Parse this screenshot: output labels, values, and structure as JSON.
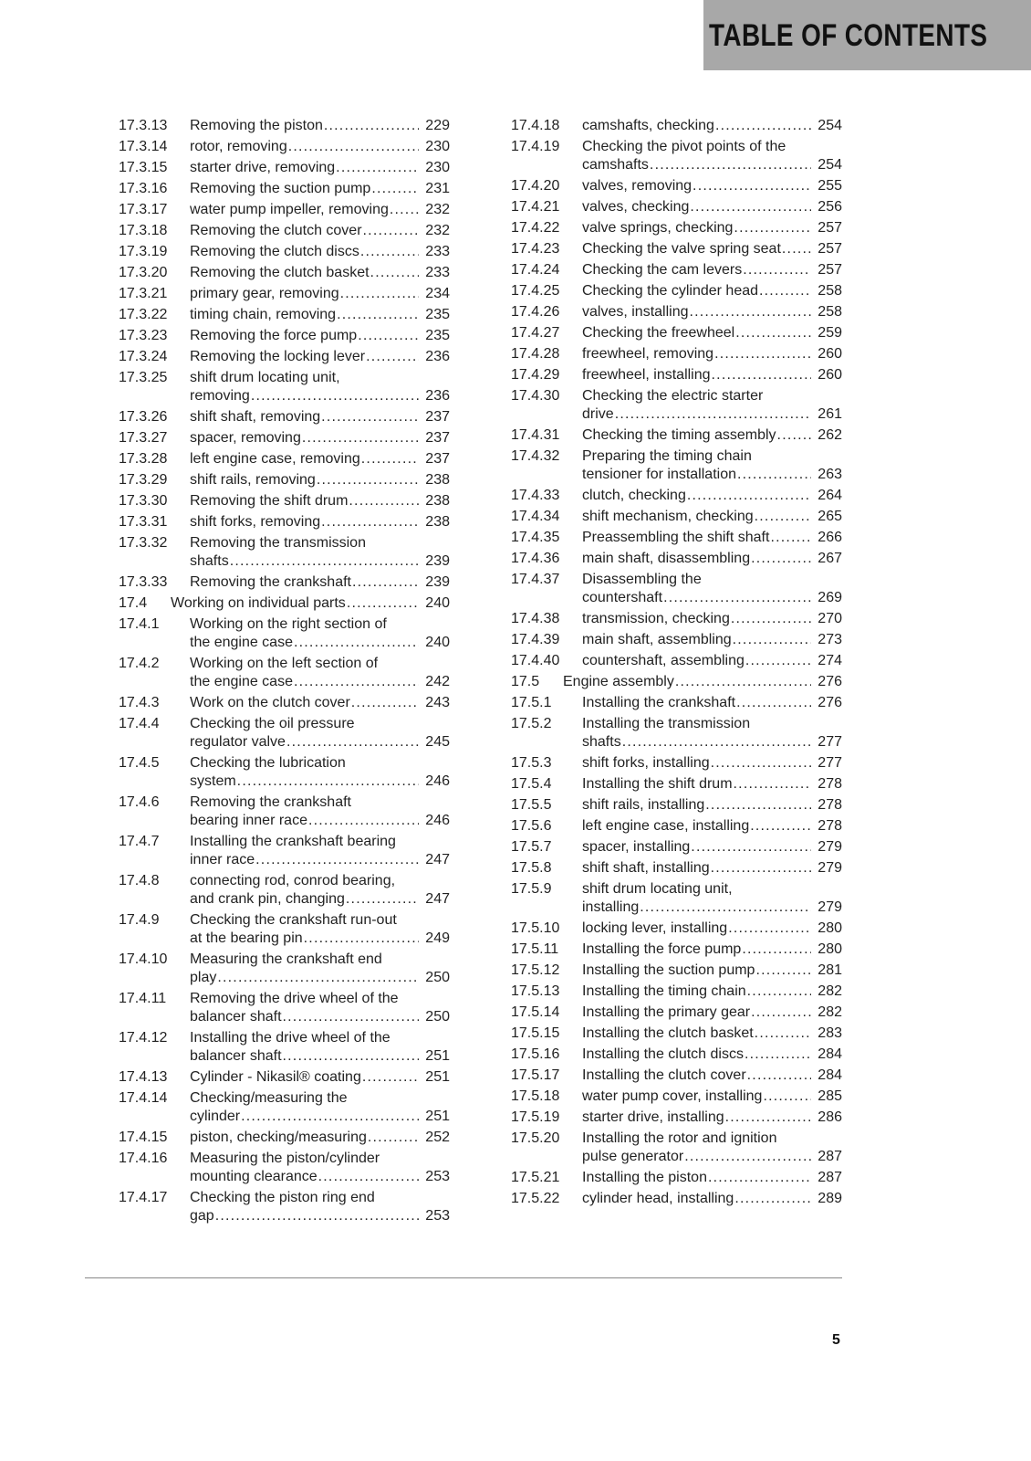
{
  "header": {
    "title": "TABLE OF CONTENTS"
  },
  "page_number": "5",
  "left": [
    {
      "num": "17.3.13",
      "lines": [
        "Removing the piston"
      ],
      "page": "229"
    },
    {
      "num": "17.3.14",
      "lines": [
        "rotor, removing"
      ],
      "page": "230"
    },
    {
      "num": "17.3.15",
      "lines": [
        "starter drive, removing"
      ],
      "page": "230"
    },
    {
      "num": "17.3.16",
      "lines": [
        "Removing the suction pump"
      ],
      "page": "231"
    },
    {
      "num": "17.3.17",
      "lines": [
        "water pump impeller, removing"
      ],
      "page": "232"
    },
    {
      "num": "17.3.18",
      "lines": [
        "Removing the clutch cover"
      ],
      "page": "232"
    },
    {
      "num": "17.3.19",
      "lines": [
        "Removing the clutch discs"
      ],
      "page": "233"
    },
    {
      "num": "17.3.20",
      "lines": [
        "Removing the clutch basket"
      ],
      "page": "233"
    },
    {
      "num": "17.3.21",
      "lines": [
        "primary gear, removing"
      ],
      "page": "234"
    },
    {
      "num": "17.3.22",
      "lines": [
        "timing chain, removing"
      ],
      "page": "235"
    },
    {
      "num": "17.3.23",
      "lines": [
        "Removing the force pump"
      ],
      "page": "235"
    },
    {
      "num": "17.3.24",
      "lines": [
        "Removing the locking lever"
      ],
      "page": "236"
    },
    {
      "num": "17.3.25",
      "lines": [
        "shift drum locating unit,",
        "removing"
      ],
      "page": "236"
    },
    {
      "num": "17.3.26",
      "lines": [
        "shift shaft, removing"
      ],
      "page": "237"
    },
    {
      "num": "17.3.27",
      "lines": [
        "spacer, removing"
      ],
      "page": "237"
    },
    {
      "num": "17.3.28",
      "lines": [
        "left engine case, removing"
      ],
      "page": "237"
    },
    {
      "num": "17.3.29",
      "lines": [
        "shift rails, removing"
      ],
      "page": "238"
    },
    {
      "num": "17.3.30",
      "lines": [
        "Removing the shift drum"
      ],
      "page": "238"
    },
    {
      "num": "17.3.31",
      "lines": [
        "shift forks, removing"
      ],
      "page": "238"
    },
    {
      "num": "17.3.32",
      "lines": [
        "Removing the transmission",
        "shafts"
      ],
      "page": "239"
    },
    {
      "num": "17.3.33",
      "lines": [
        "Removing the crankshaft"
      ],
      "page": "239"
    },
    {
      "num": "17.4",
      "lines": [
        "Working on individual parts"
      ],
      "page": "240",
      "level": 2
    },
    {
      "num": "17.4.1",
      "lines": [
        "Working on the right section of",
        "the engine case"
      ],
      "page": "240"
    },
    {
      "num": "17.4.2",
      "lines": [
        "Working on the left section of",
        "the engine case"
      ],
      "page": "242"
    },
    {
      "num": "17.4.3",
      "lines": [
        "Work on the clutch cover"
      ],
      "page": "243"
    },
    {
      "num": "17.4.4",
      "lines": [
        "Checking the oil pressure",
        "regulator valve"
      ],
      "page": "245"
    },
    {
      "num": "17.4.5",
      "lines": [
        "Checking the lubrication",
        "system"
      ],
      "page": "246"
    },
    {
      "num": "17.4.6",
      "lines": [
        "Removing the crankshaft",
        "bearing inner race"
      ],
      "page": "246"
    },
    {
      "num": "17.4.7",
      "lines": [
        "Installing the crankshaft bearing",
        "inner race"
      ],
      "page": "247"
    },
    {
      "num": "17.4.8",
      "lines": [
        "connecting rod, conrod bearing,",
        "and crank pin, changing"
      ],
      "page": "247"
    },
    {
      "num": "17.4.9",
      "lines": [
        "Checking the crankshaft run-out",
        "at the bearing pin"
      ],
      "page": "249"
    },
    {
      "num": "17.4.10",
      "lines": [
        "Measuring the crankshaft end",
        "play"
      ],
      "page": "250"
    },
    {
      "num": "17.4.11",
      "lines": [
        "Removing the drive wheel of the",
        "balancer shaft"
      ],
      "page": "250"
    },
    {
      "num": "17.4.12",
      "lines": [
        "Installing the drive wheel of the",
        "balancer shaft"
      ],
      "page": "251"
    },
    {
      "num": "17.4.13",
      "lines": [
        "Cylinder - Nikasil® coating"
      ],
      "page": "251"
    },
    {
      "num": "17.4.14",
      "lines": [
        "Checking/measuring the",
        "cylinder"
      ],
      "page": "251"
    },
    {
      "num": "17.4.15",
      "lines": [
        "piston, checking/measuring"
      ],
      "page": "252"
    },
    {
      "num": "17.4.16",
      "lines": [
        "Measuring the piston/cylinder",
        "mounting clearance"
      ],
      "page": "253"
    },
    {
      "num": "17.4.17",
      "lines": [
        "Checking the piston ring end",
        "gap"
      ],
      "page": "253"
    }
  ],
  "right": [
    {
      "num": "17.4.18",
      "lines": [
        "camshafts, checking"
      ],
      "page": "254"
    },
    {
      "num": "17.4.19",
      "lines": [
        "Checking the pivot points of the",
        "camshafts"
      ],
      "page": "254"
    },
    {
      "num": "17.4.20",
      "lines": [
        "valves, removing"
      ],
      "page": "255"
    },
    {
      "num": "17.4.21",
      "lines": [
        "valves, checking"
      ],
      "page": "256"
    },
    {
      "num": "17.4.22",
      "lines": [
        "valve springs, checking"
      ],
      "page": "257"
    },
    {
      "num": "17.4.23",
      "lines": [
        "Checking the valve spring seat"
      ],
      "page": "257"
    },
    {
      "num": "17.4.24",
      "lines": [
        "Checking the cam levers"
      ],
      "page": "257"
    },
    {
      "num": "17.4.25",
      "lines": [
        "Checking the cylinder head"
      ],
      "page": "258"
    },
    {
      "num": "17.4.26",
      "lines": [
        "valves, installing"
      ],
      "page": "258"
    },
    {
      "num": "17.4.27",
      "lines": [
        "Checking the freewheel"
      ],
      "page": "259"
    },
    {
      "num": "17.4.28",
      "lines": [
        "freewheel, removing"
      ],
      "page": "260"
    },
    {
      "num": "17.4.29",
      "lines": [
        "freewheel, installing"
      ],
      "page": "260"
    },
    {
      "num": "17.4.30",
      "lines": [
        "Checking the electric starter",
        "drive"
      ],
      "page": "261"
    },
    {
      "num": "17.4.31",
      "lines": [
        "Checking the timing assembly"
      ],
      "page": "262"
    },
    {
      "num": "17.4.32",
      "lines": [
        "Preparing the timing chain",
        "tensioner for installation"
      ],
      "page": "263"
    },
    {
      "num": "17.4.33",
      "lines": [
        "clutch, checking"
      ],
      "page": "264"
    },
    {
      "num": "17.4.34",
      "lines": [
        "shift mechanism, checking"
      ],
      "page": "265"
    },
    {
      "num": "17.4.35",
      "lines": [
        "Preassembling the shift shaft"
      ],
      "page": "266"
    },
    {
      "num": "17.4.36",
      "lines": [
        "main shaft, disassembling"
      ],
      "page": "267"
    },
    {
      "num": "17.4.37",
      "lines": [
        "Disassembling the",
        "countershaft"
      ],
      "page": "269"
    },
    {
      "num": "17.4.38",
      "lines": [
        "transmission, checking"
      ],
      "page": "270"
    },
    {
      "num": "17.4.39",
      "lines": [
        "main shaft, assembling"
      ],
      "page": "273"
    },
    {
      "num": "17.4.40",
      "lines": [
        "countershaft, assembling"
      ],
      "page": "274"
    },
    {
      "num": "17.5",
      "lines": [
        "Engine assembly"
      ],
      "page": "276",
      "level": 2
    },
    {
      "num": "17.5.1",
      "lines": [
        "Installing the crankshaft"
      ],
      "page": "276"
    },
    {
      "num": "17.5.2",
      "lines": [
        "Installing the transmission",
        "shafts"
      ],
      "page": "277"
    },
    {
      "num": "17.5.3",
      "lines": [
        "shift forks, installing"
      ],
      "page": "277"
    },
    {
      "num": "17.5.4",
      "lines": [
        "Installing the shift drum"
      ],
      "page": "278"
    },
    {
      "num": "17.5.5",
      "lines": [
        "shift rails, installing"
      ],
      "page": "278"
    },
    {
      "num": "17.5.6",
      "lines": [
        "left engine case, installing"
      ],
      "page": "278"
    },
    {
      "num": "17.5.7",
      "lines": [
        "spacer, installing"
      ],
      "page": "279"
    },
    {
      "num": "17.5.8",
      "lines": [
        "shift shaft, installing"
      ],
      "page": "279"
    },
    {
      "num": "17.5.9",
      "lines": [
        "shift drum locating unit,",
        "installing"
      ],
      "page": "279"
    },
    {
      "num": "17.5.10",
      "lines": [
        "locking lever, installing"
      ],
      "page": "280"
    },
    {
      "num": "17.5.11",
      "lines": [
        "Installing the force pump"
      ],
      "page": "280"
    },
    {
      "num": "17.5.12",
      "lines": [
        "Installing the suction pump"
      ],
      "page": "281"
    },
    {
      "num": "17.5.13",
      "lines": [
        "Installing the timing chain"
      ],
      "page": "282"
    },
    {
      "num": "17.5.14",
      "lines": [
        "Installing the primary gear"
      ],
      "page": "282"
    },
    {
      "num": "17.5.15",
      "lines": [
        "Installing the clutch basket"
      ],
      "page": "283"
    },
    {
      "num": "17.5.16",
      "lines": [
        "Installing the clutch discs"
      ],
      "page": "284"
    },
    {
      "num": "17.5.17",
      "lines": [
        "Installing the clutch cover"
      ],
      "page": "284"
    },
    {
      "num": "17.5.18",
      "lines": [
        "water pump cover, installing"
      ],
      "page": "285"
    },
    {
      "num": "17.5.19",
      "lines": [
        "starter drive, installing"
      ],
      "page": "286"
    },
    {
      "num": "17.5.20",
      "lines": [
        "Installing the rotor and ignition",
        "pulse generator"
      ],
      "page": "287"
    },
    {
      "num": "17.5.21",
      "lines": [
        "Installing the piston"
      ],
      "page": "287"
    },
    {
      "num": "17.5.22",
      "lines": [
        "cylinder head, installing"
      ],
      "page": "289"
    }
  ]
}
